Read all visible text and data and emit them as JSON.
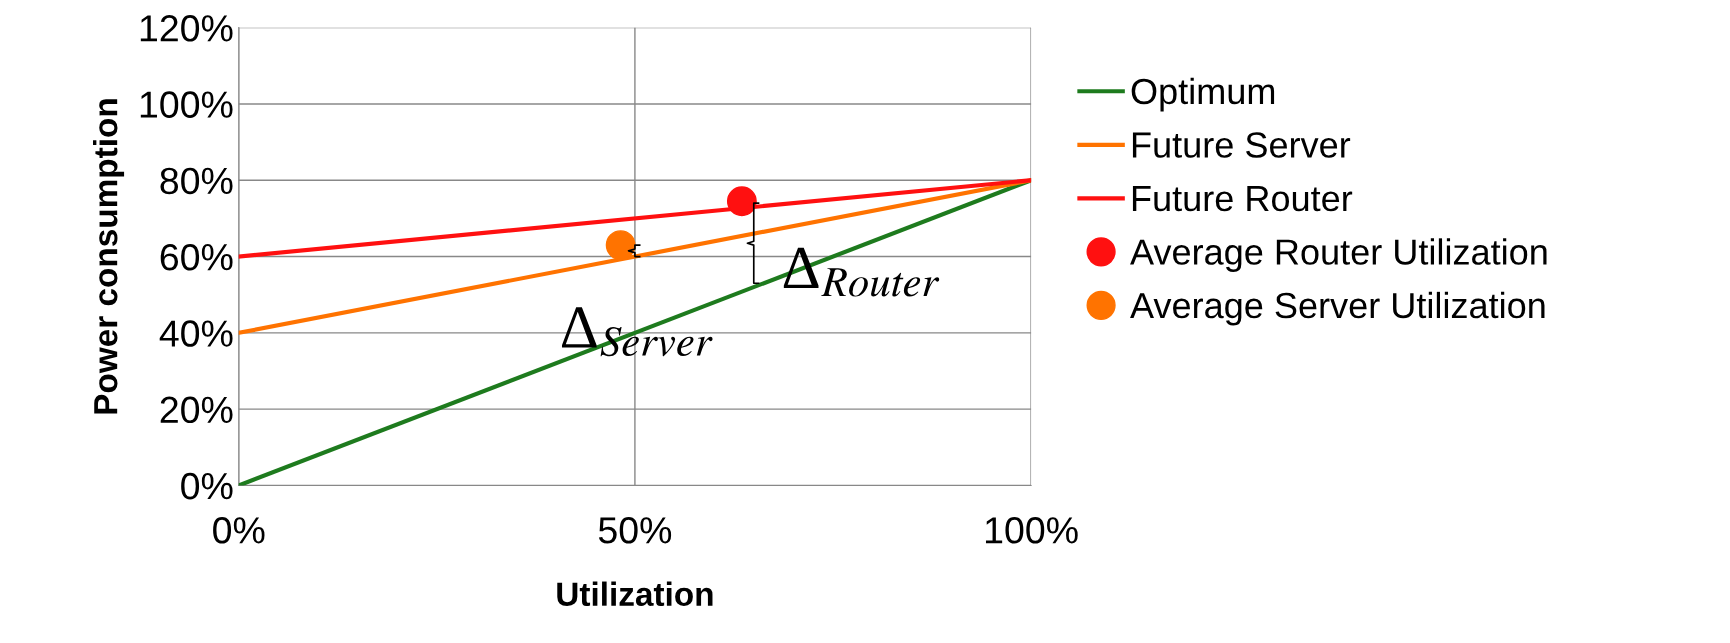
{
  "chart_data": {
    "type": "line",
    "xlabel": "Utilization",
    "ylabel": "Power consumption",
    "xlim": [
      0,
      100
    ],
    "ylim": [
      0,
      120
    ],
    "xticks": [
      {
        "value": 0,
        "label": "0%"
      },
      {
        "value": 50,
        "label": "50%"
      },
      {
        "value": 100,
        "label": "100%"
      }
    ],
    "yticks": [
      {
        "value": 0,
        "label": "0%"
      },
      {
        "value": 20,
        "label": "20%"
      },
      {
        "value": 40,
        "label": "40%"
      },
      {
        "value": 60,
        "label": "60%"
      },
      {
        "value": 80,
        "label": "80%"
      },
      {
        "value": 100,
        "label": "100%"
      },
      {
        "value": 120,
        "label": "120%"
      }
    ],
    "grid": true,
    "legend": "right",
    "series": [
      {
        "name": "Optimum",
        "color": "#1e7b1e",
        "x": [
          0,
          100
        ],
        "values": [
          0,
          80
        ]
      },
      {
        "name": "Future Server",
        "color": "#ff7300",
        "x": [
          0,
          100
        ],
        "values": [
          40,
          80
        ]
      },
      {
        "name": "Future Router",
        "color": "#ff1010",
        "x": [
          0,
          100
        ],
        "values": [
          60,
          80
        ]
      },
      {
        "name": "Average Router Utilization",
        "type": "scatter",
        "marker": "circle",
        "color": "#ff1010",
        "x": [
          63.5
        ],
        "values": [
          74.5
        ]
      },
      {
        "name": "Average Server Utilization",
        "type": "scatter",
        "marker": "circle",
        "color": "#ff7300",
        "x": [
          48.2
        ],
        "values": [
          63
        ]
      }
    ],
    "annotations": [
      "Δ$_{Server}$",
      "Δ$_{Router}$"
    ]
  }
}
